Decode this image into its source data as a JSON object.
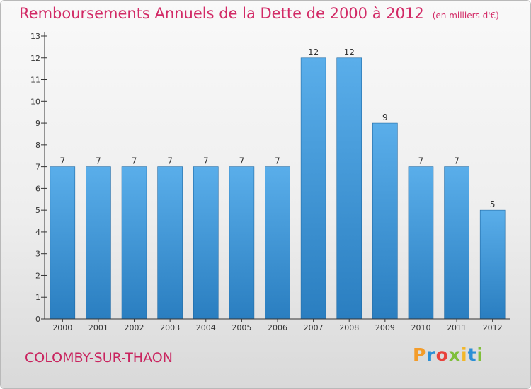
{
  "header": {
    "title": "Remboursements Annuels de la Dette de 2000 à 2012",
    "unit": "(en milliers d'€)"
  },
  "footer": {
    "location": "COLOMBY-SUR-THAON",
    "logo": "Proxiti"
  },
  "colors": {
    "title": "#d22a66",
    "bar_light": "#5aaeea",
    "bar_dark": "#2a7ec0",
    "axis": "#333333"
  },
  "chart_data": {
    "type": "bar",
    "title": "Remboursements Annuels de la Dette de 2000 à 2012",
    "categories": [
      "2000",
      "2001",
      "2002",
      "2003",
      "2004",
      "2005",
      "2006",
      "2007",
      "2008",
      "2009",
      "2010",
      "2011",
      "2012"
    ],
    "values": [
      7,
      7,
      7,
      7,
      7,
      7,
      7,
      12,
      12,
      9,
      7,
      7,
      5
    ],
    "ylim": [
      0,
      13
    ],
    "yticks": [
      0,
      1,
      2,
      3,
      4,
      5,
      6,
      7,
      8,
      9,
      10,
      11,
      12,
      13
    ],
    "grid": false,
    "legend": "none"
  }
}
